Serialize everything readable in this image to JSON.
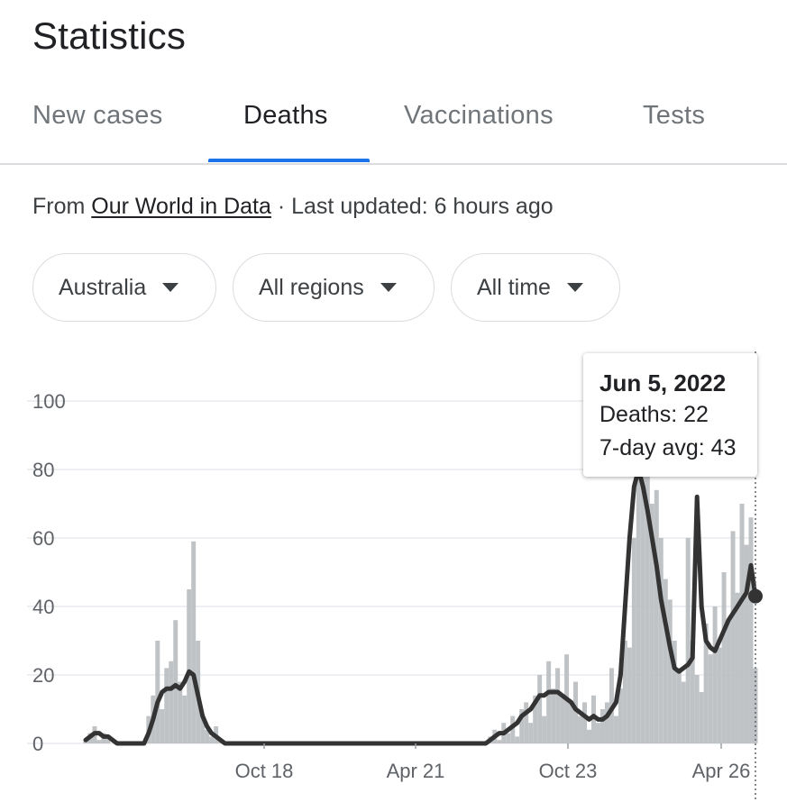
{
  "page": {
    "title": "Statistics"
  },
  "tabs": [
    {
      "label": "New cases",
      "active": false
    },
    {
      "label": "Deaths",
      "active": true
    },
    {
      "label": "Vaccinations",
      "active": false
    },
    {
      "label": "Tests",
      "active": false
    }
  ],
  "source": {
    "prefix": "From",
    "link": "Our World in Data",
    "separator": "·",
    "updated": "Last updated: 6 hours ago"
  },
  "filters": [
    {
      "label": "Australia"
    },
    {
      "label": "All regions"
    },
    {
      "label": "All time"
    }
  ],
  "tooltip": {
    "date": "Jun 5, 2022",
    "deaths_line": "Deaths: 22",
    "avg_line": "7-day avg: 43"
  },
  "colors": {
    "accent": "#1a73e8",
    "avg_line": "#333333",
    "daily_bars": "#b9bcc0"
  },
  "chart_data": {
    "type": "area",
    "y_ticks": [
      "0",
      "20",
      "40",
      "60",
      "80",
      "100"
    ],
    "x_ticks": [
      "Oct 18",
      "Apr 21",
      "Oct 23",
      "Apr 26"
    ],
    "ylim": [
      0,
      100
    ],
    "grid": true,
    "series": [
      {
        "name": "Deaths",
        "values": [
          1,
          3,
          5,
          1,
          3,
          2,
          0,
          0,
          0,
          0,
          0,
          0,
          0,
          0,
          8,
          14,
          30,
          10,
          22,
          24,
          36,
          18,
          14,
          45,
          59,
          30,
          8,
          4,
          2,
          5,
          1,
          0,
          0,
          0,
          0,
          0,
          0,
          0,
          0,
          0,
          0,
          0,
          0,
          0,
          0,
          0,
          0,
          0,
          0,
          0,
          0,
          0,
          0,
          0,
          0,
          0,
          0,
          0,
          0,
          0,
          0,
          0,
          0,
          0,
          0,
          0,
          0,
          0,
          0,
          0,
          0,
          0,
          0,
          0,
          0,
          0,
          0,
          0,
          0,
          0,
          0,
          0,
          0,
          0,
          0,
          0,
          0,
          0,
          0,
          0,
          2,
          4,
          1,
          6,
          3,
          8,
          2,
          10,
          12,
          6,
          14,
          20,
          8,
          24,
          16,
          22,
          14,
          26,
          12,
          18,
          8,
          12,
          4,
          14,
          6,
          10,
          12,
          22,
          8,
          16,
          30,
          28,
          60,
          78,
          85,
          92,
          70,
          74,
          60,
          48,
          42,
          30,
          22,
          18,
          60,
          30,
          20,
          15,
          35,
          26,
          40,
          28,
          50,
          36,
          62,
          44,
          70,
          58,
          66,
          22
        ]
      },
      {
        "name": "7-day avg",
        "values": [
          1,
          2,
          3,
          3,
          2,
          2,
          1,
          0,
          0,
          0,
          0,
          0,
          0,
          0,
          3,
          7,
          12,
          15,
          16,
          16,
          17,
          16,
          18,
          21,
          20,
          14,
          8,
          5,
          3,
          2,
          1,
          0,
          0,
          0,
          0,
          0,
          0,
          0,
          0,
          0,
          0,
          0,
          0,
          0,
          0,
          0,
          0,
          0,
          0,
          0,
          0,
          0,
          0,
          0,
          0,
          0,
          0,
          0,
          0,
          0,
          0,
          0,
          0,
          0,
          0,
          0,
          0,
          0,
          0,
          0,
          0,
          0,
          0,
          0,
          0,
          0,
          0,
          0,
          0,
          0,
          0,
          0,
          0,
          0,
          0,
          0,
          0,
          0,
          0,
          0,
          1,
          2,
          3,
          3,
          4,
          5,
          6,
          8,
          9,
          10,
          12,
          14,
          14,
          15,
          15,
          15,
          14,
          13,
          12,
          10,
          9,
          8,
          7,
          8,
          7,
          7,
          8,
          10,
          12,
          20,
          40,
          60,
          75,
          80,
          75,
          68,
          60,
          52,
          42,
          35,
          28,
          22,
          21,
          22,
          23,
          25,
          72,
          40,
          30,
          28,
          27,
          30,
          33,
          36,
          38,
          40,
          42,
          44,
          52,
          43
        ]
      }
    ]
  }
}
